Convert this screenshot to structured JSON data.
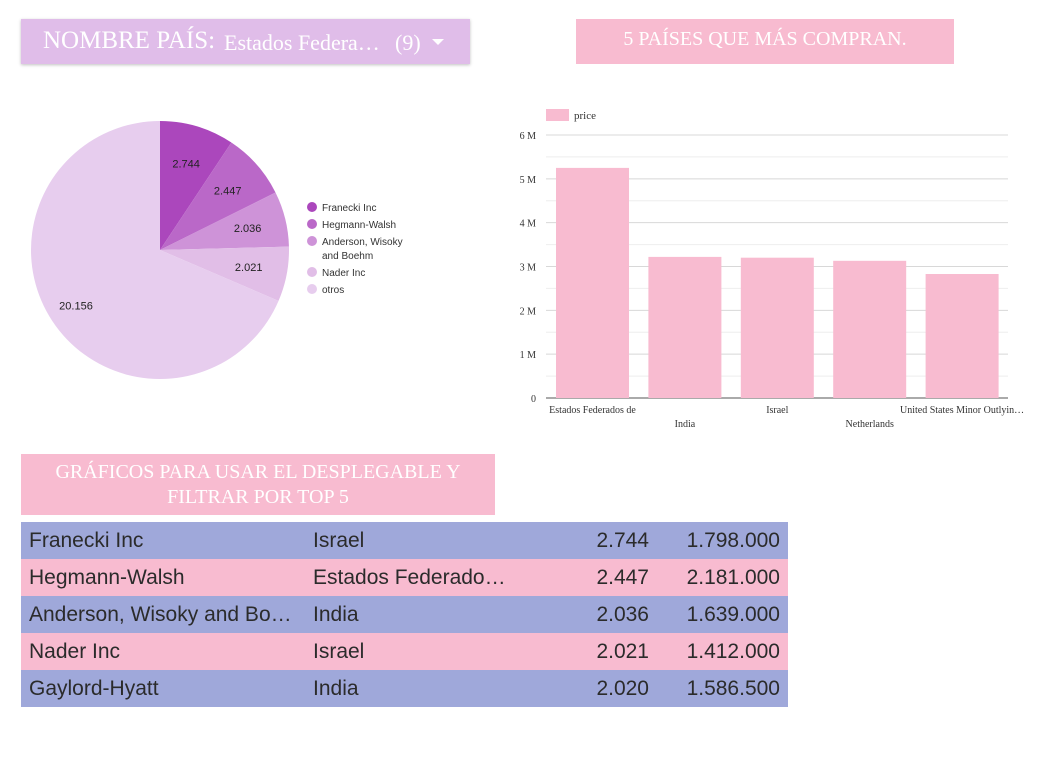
{
  "filter": {
    "label": "NOMBRE PAÍS:",
    "value": "Estados Federados de",
    "count": "(9)"
  },
  "bar_title": "5 PAÍSES QUE MÁS COMPRAN.",
  "table_title": "GRÁFICOS PARA USAR EL DESPLEGABLE Y FILTRAR POR TOP 5",
  "colors": {
    "pie": [
      "#ab47bc",
      "#ba68c8",
      "#ce93d8",
      "#e1bee7",
      "#e7cdee"
    ],
    "bar": "#f8bbd0",
    "row_odd": "#9fa8da",
    "row_even": "#f8bbd0"
  },
  "chart_data": [
    {
      "type": "pie",
      "slices": [
        {
          "name": "Franecki Inc",
          "value": 2.744,
          "label": "2.744"
        },
        {
          "name": "Hegmann-Walsh",
          "value": 2.447,
          "label": "2.447"
        },
        {
          "name": "Anderson, Wisoky and Boehm",
          "value": 2.036,
          "label": "2.036"
        },
        {
          "name": "Nader Inc",
          "value": 2.021,
          "label": "2.021"
        },
        {
          "name": "otros",
          "value": 20.156,
          "label": "20.156"
        }
      ],
      "legend_position": "right"
    },
    {
      "type": "bar",
      "categories": [
        "Estados Federados de",
        "India",
        "Israel",
        "Netherlands",
        "United States Minor Outlyin…"
      ],
      "series": [
        {
          "name": "price",
          "values": [
            5.25,
            3.22,
            3.2,
            3.13,
            2.83
          ]
        }
      ],
      "ylim": [
        0,
        6
      ],
      "yticks": [
        "0",
        "1 M",
        "2 M",
        "3 M",
        "4 M",
        "5 M",
        "6 M"
      ],
      "grid": true,
      "legend_position": "top-left"
    }
  ],
  "table": {
    "rows": [
      {
        "company": "Franecki Inc",
        "country": "Israel",
        "qty": "2.744",
        "price": "1.798.000"
      },
      {
        "company": "Hegmann-Walsh",
        "country": "Estados Federados de",
        "qty": "2.447",
        "price": "2.181.000"
      },
      {
        "company": "Anderson, Wisoky and Boehm",
        "country": "India",
        "qty": "2.036",
        "price": "1.639.000"
      },
      {
        "company": "Nader Inc",
        "country": "Israel",
        "qty": "2.021",
        "price": "1.412.000"
      },
      {
        "company": "Gaylord-Hyatt",
        "country": "India",
        "qty": "2.020",
        "price": "1.586.500"
      }
    ]
  }
}
